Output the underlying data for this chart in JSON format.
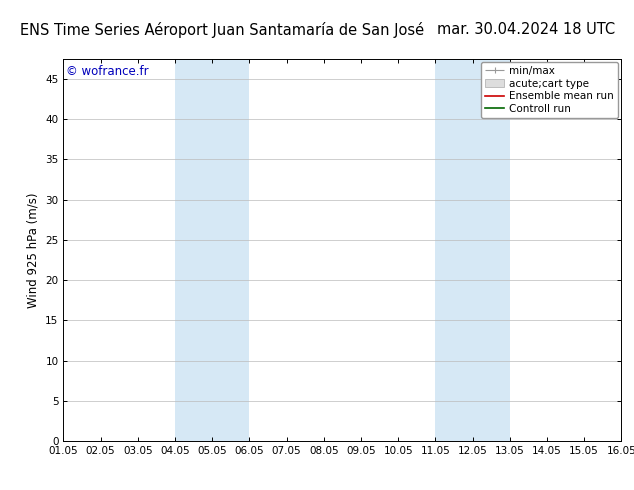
{
  "title": "ENS Time Series Aéroport Juan Santamaría de San José",
  "date_label": "mar. 30.04.2024 18 UTC",
  "ylabel": "Wind 925 hPa (m/s)",
  "watermark": "© wofrance.fr",
  "x_tick_labels": [
    "01.05",
    "02.05",
    "03.05",
    "04.05",
    "05.05",
    "06.05",
    "07.05",
    "08.05",
    "09.05",
    "10.05",
    "11.05",
    "12.05",
    "13.05",
    "14.05",
    "15.05",
    "16.05"
  ],
  "x_tick_positions": [
    0,
    1,
    2,
    3,
    4,
    5,
    6,
    7,
    8,
    9,
    10,
    11,
    12,
    13,
    14,
    15
  ],
  "ylim": [
    0,
    47.5
  ],
  "yticks": [
    0,
    5,
    10,
    15,
    20,
    25,
    30,
    35,
    40,
    45
  ],
  "shaded_regions": [
    {
      "x_start": 3,
      "x_end": 5,
      "color": "#d6e8f5"
    },
    {
      "x_start": 10,
      "x_end": 12,
      "color": "#d6e8f5"
    }
  ],
  "legend_entries": [
    {
      "label": "min/max",
      "color": "#aaaaaa",
      "lw": 1
    },
    {
      "label": "acute;cart type",
      "color": "#cccccc",
      "lw": 6
    },
    {
      "label": "Ensemble mean run",
      "color": "#cc0000",
      "lw": 1.2
    },
    {
      "label": "Controll run",
      "color": "#006600",
      "lw": 1.2
    }
  ],
  "bg_color": "#ffffff",
  "plot_bg_color": "#ffffff",
  "grid_color": "#bbbbbb",
  "title_fontsize": 10.5,
  "label_fontsize": 8.5,
  "tick_fontsize": 7.5,
  "legend_fontsize": 7.5,
  "watermark_fontsize": 8.5
}
